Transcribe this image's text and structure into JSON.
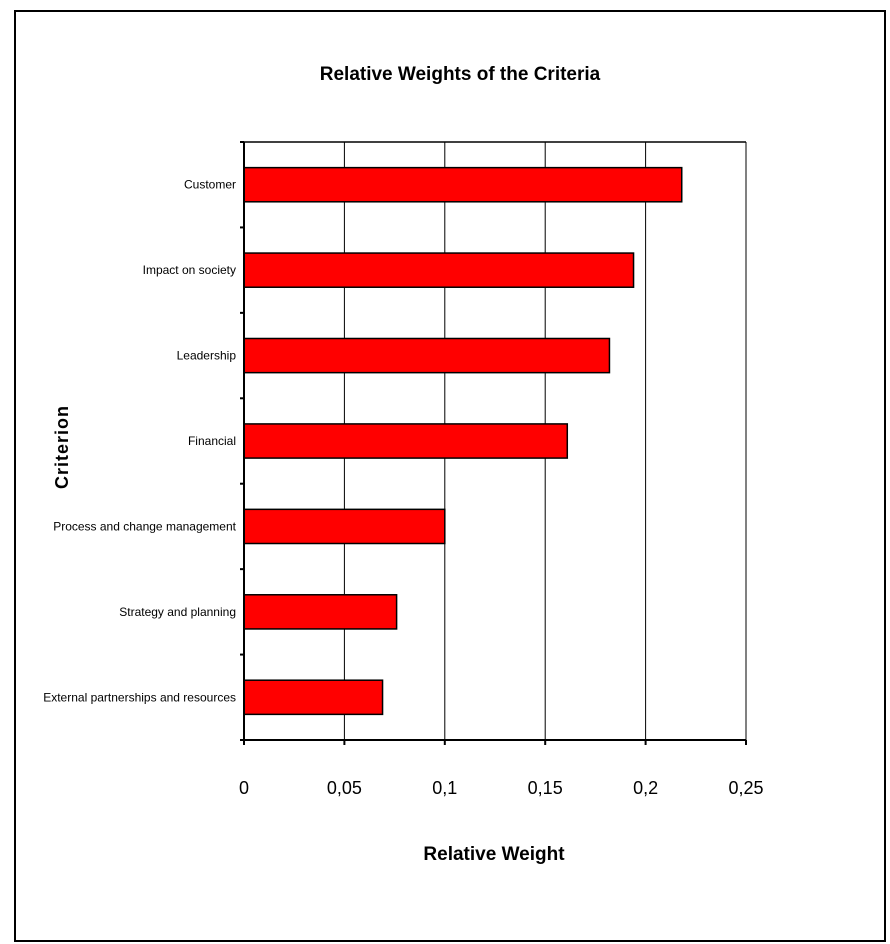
{
  "chart_data": {
    "type": "bar",
    "orientation": "horizontal",
    "title": "Relative Weights of the Criteria",
    "xlabel": "Relative Weight",
    "ylabel": "Criterion",
    "categories": [
      "Customer",
      "Impact on society",
      "Leadership",
      "Financial",
      "Process and change management",
      "Strategy and planning",
      "External partnerships and resources"
    ],
    "values": [
      0.218,
      0.194,
      0.182,
      0.161,
      0.1,
      0.076,
      0.069
    ],
    "xlim": [
      0,
      0.25
    ],
    "xticks": [
      "0",
      "0,05",
      "0,1",
      "0,15",
      "0,2",
      "0,25"
    ],
    "xtick_values": [
      0,
      0.05,
      0.1,
      0.15,
      0.2,
      0.25
    ],
    "grid": "vertical",
    "legend": "none",
    "colors": {
      "bar": "#ff0000",
      "bar_edge": "#000000",
      "grid": "#000000"
    }
  }
}
